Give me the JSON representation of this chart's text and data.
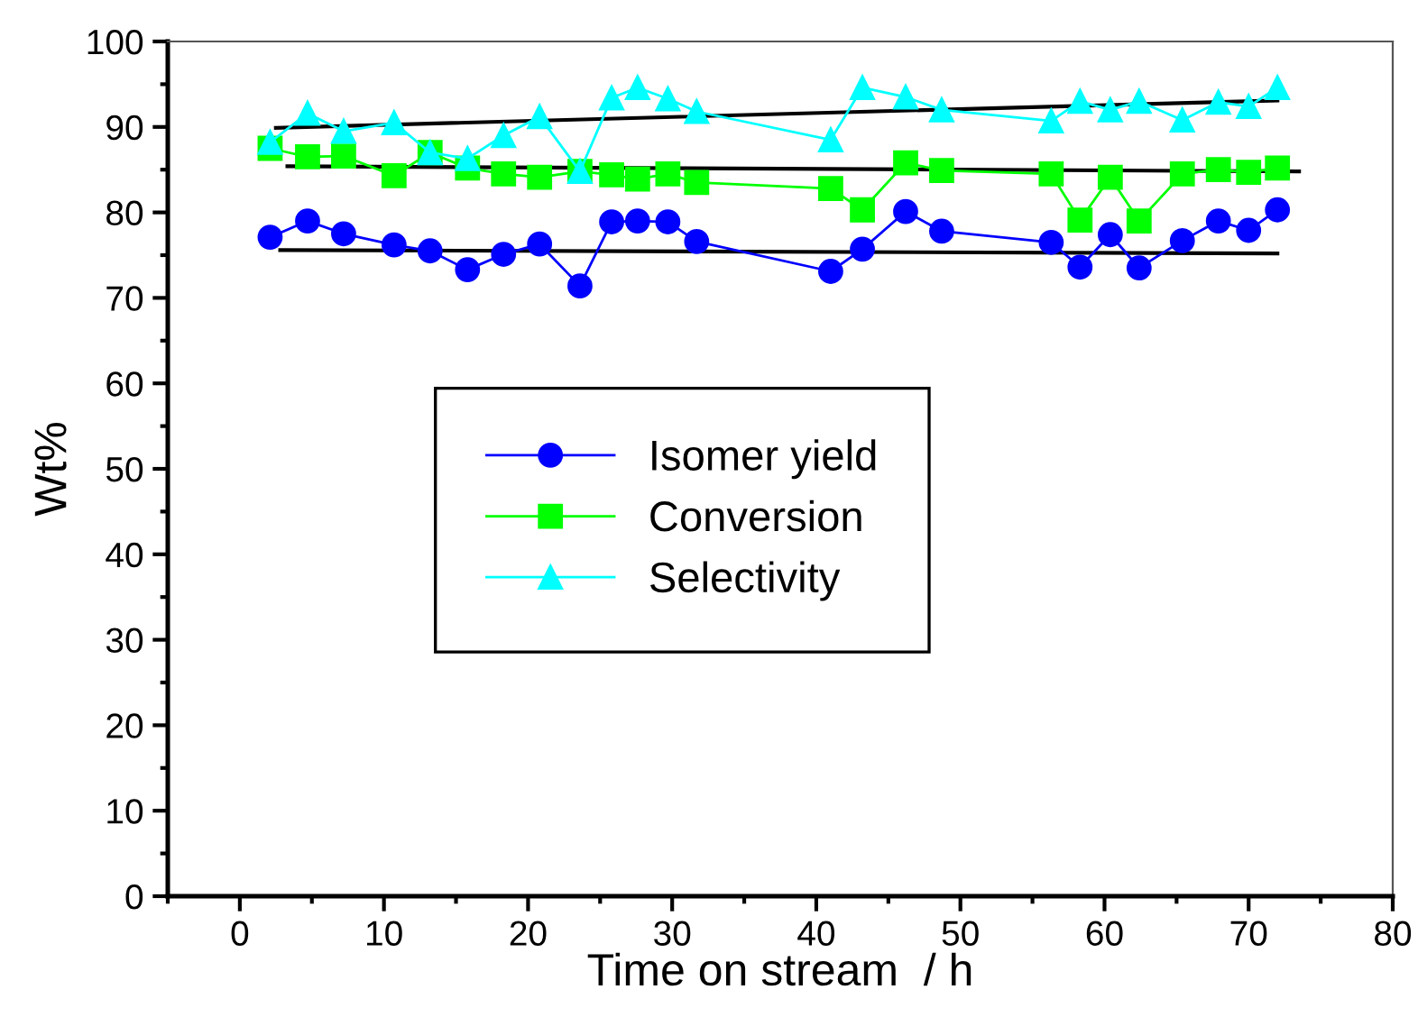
{
  "chart_data": {
    "type": "line",
    "xlabel": "Time on stream  / h",
    "ylabel": "Wt%",
    "x": [
      2.1,
      4.7,
      7.2,
      10.7,
      13.2,
      15.8,
      18.3,
      20.8,
      23.6,
      25.8,
      27.6,
      29.7,
      31.7,
      41.0,
      43.2,
      46.2,
      48.7,
      56.3,
      58.3,
      60.4,
      62.4,
      65.4,
      67.9,
      70.0,
      72.0
    ],
    "series": [
      {
        "name": "Isomer yield",
        "color": "#0000ff",
        "marker": "circle",
        "values": [
          77.1,
          79.0,
          77.5,
          76.2,
          75.5,
          73.3,
          75.1,
          76.3,
          71.4,
          78.9,
          79.0,
          78.9,
          76.6,
          73.1,
          75.7,
          80.1,
          77.8,
          76.5,
          73.6,
          77.4,
          73.5,
          76.7,
          79.0,
          77.9,
          80.3
        ]
      },
      {
        "name": "Conversion",
        "color": "#00ff00",
        "marker": "square",
        "values": [
          87.5,
          86.5,
          86.6,
          84.3,
          87.0,
          85.2,
          84.5,
          84.1,
          84.8,
          84.4,
          83.9,
          84.5,
          83.5,
          82.8,
          80.3,
          85.8,
          84.9,
          84.5,
          79.1,
          84.1,
          79.0,
          84.5,
          85.0,
          84.7,
          85.2
        ]
      },
      {
        "name": "Selectivity",
        "color": "#00ffff",
        "marker": "triangle",
        "values": [
          88.2,
          91.6,
          89.5,
          90.5,
          87.0,
          86.3,
          89.0,
          91.2,
          84.8,
          93.4,
          94.6,
          93.3,
          91.8,
          88.5,
          94.6,
          93.5,
          92.0,
          90.7,
          93.0,
          92.0,
          93.0,
          90.8,
          92.9,
          92.4,
          94.6
        ]
      },
      {
        "color": "#000000",
        "marker": "none",
        "x": [
          2.8,
          72.0
        ],
        "values": [
          75.6,
          75.2
        ]
      },
      {
        "color": "#000000",
        "marker": "none",
        "x": [
          3.3,
          73.5
        ],
        "values": [
          85.4,
          84.8
        ]
      },
      {
        "color": "#000000",
        "marker": "none",
        "x": [
          2.5,
          72.0
        ],
        "values": [
          89.9,
          93.1
        ]
      }
    ],
    "xlim": [
      -5,
      80
    ],
    "xticks": [
      0,
      10,
      20,
      30,
      40,
      50,
      60,
      70,
      80
    ],
    "ylim": [
      0,
      100
    ],
    "yticks": [
      0,
      10,
      20,
      30,
      40,
      50,
      60,
      70,
      80,
      90,
      100
    ],
    "grid": false,
    "legend": "center"
  }
}
